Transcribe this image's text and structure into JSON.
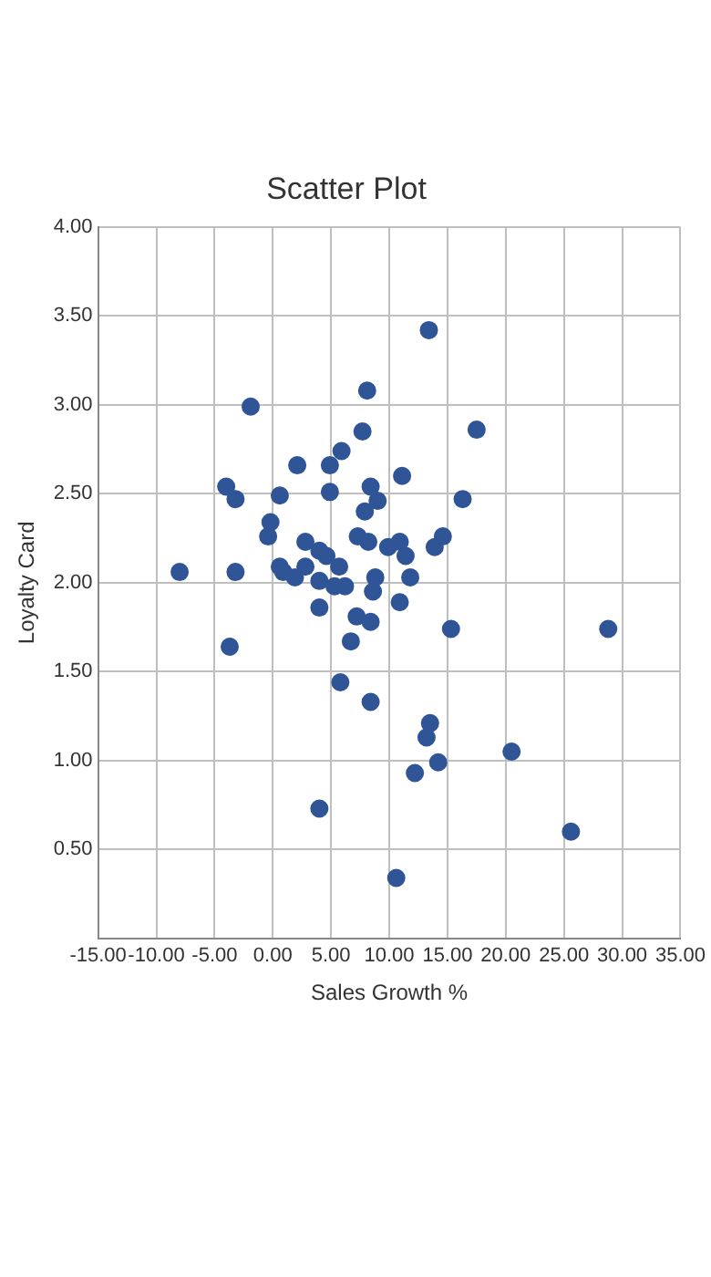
{
  "chart_data": {
    "type": "scatter",
    "title": "Scatter Plot",
    "xlabel": "Sales Growth %",
    "ylabel": "Loyalty Card",
    "series": [
      {
        "color": "#2f5597",
        "x": [
          -8.0,
          -3.7,
          -4.0,
          -3.2,
          -3.2,
          -1.9,
          -0.4,
          -0.2,
          0.6,
          0.9,
          0.6,
          1.9,
          2.1,
          2.8,
          2.8,
          4.0,
          4.0,
          4.0,
          4.0,
          4.6,
          4.9,
          4.9,
          5.3,
          5.7,
          5.8,
          5.9,
          6.2,
          6.7,
          7.2,
          7.3,
          7.7,
          7.9,
          8.2,
          8.1,
          8.4,
          8.4,
          8.4,
          8.6,
          9.0,
          8.8,
          9.9,
          10.6,
          10.9,
          10.9,
          11.1,
          11.4,
          11.8,
          12.2,
          13.2,
          13.5,
          13.4,
          14.2,
          13.9,
          14.6,
          15.3,
          16.3,
          17.5,
          20.5,
          25.6,
          28.8
        ],
        "values": [
          2.06,
          1.64,
          2.54,
          2.47,
          2.06,
          2.99,
          2.26,
          2.34,
          2.09,
          2.06,
          2.49,
          2.03,
          2.66,
          2.09,
          2.23,
          0.73,
          1.86,
          2.01,
          2.18,
          2.15,
          2.51,
          2.66,
          1.98,
          2.09,
          1.44,
          2.74,
          1.98,
          1.67,
          1.81,
          2.26,
          2.85,
          2.4,
          2.23,
          3.08,
          2.54,
          1.33,
          1.78,
          1.95,
          2.46,
          2.03,
          2.2,
          0.34,
          1.89,
          2.23,
          2.6,
          2.15,
          2.03,
          0.93,
          1.13,
          1.21,
          3.42,
          0.99,
          2.2,
          2.26,
          1.74,
          2.47,
          2.86,
          1.05,
          0.6,
          1.74
        ]
      }
    ],
    "xlim": [
      -15,
      35
    ],
    "xticks": [
      {
        "value": -15,
        "label": "-15.00"
      },
      {
        "value": -10,
        "label": "-10.00"
      },
      {
        "value": -5,
        "label": "-5.00"
      },
      {
        "value": 0,
        "label": "0.00"
      },
      {
        "value": 5,
        "label": "5.00"
      },
      {
        "value": 10,
        "label": "10.00"
      },
      {
        "value": 15,
        "label": "15.00"
      },
      {
        "value": 20,
        "label": "20.00"
      },
      {
        "value": 25,
        "label": "25.00"
      },
      {
        "value": 30,
        "label": "30.00"
      },
      {
        "value": 35,
        "label": "35.00"
      }
    ],
    "ylim": [
      0,
      4
    ],
    "yticks": [
      {
        "value": 0,
        "label": null
      },
      {
        "value": 0.5,
        "label": "0.50"
      },
      {
        "value": 1,
        "label": "1.00"
      },
      {
        "value": 1.5,
        "label": "1.50"
      },
      {
        "value": 2,
        "label": "2.00"
      },
      {
        "value": 2.5,
        "label": "2.50"
      },
      {
        "value": 3,
        "label": "3.00"
      },
      {
        "value": 3.5,
        "label": "3.50"
      },
      {
        "value": 4,
        "label": "4.00"
      }
    ],
    "grid": true,
    "marker": "circle"
  }
}
